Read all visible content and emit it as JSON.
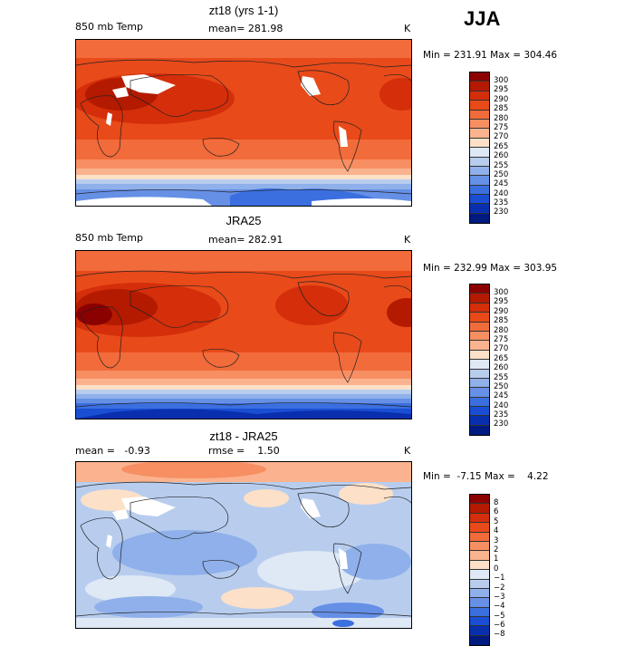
{
  "season": "JJA",
  "units": "K",
  "variable": "850 mb Temp",
  "panels": [
    {
      "title": "zt18 (yrs 1-1)",
      "left_label": "850 mb Temp",
      "mid_label": "mean= 281.98",
      "min_max": "Min = 231.91 Max = 304.46"
    },
    {
      "title": "JRA25",
      "left_label": "850 mb Temp",
      "mid_label": "mean= 282.91",
      "min_max": "Min = 232.99 Max = 303.95"
    },
    {
      "title": "zt18 - JRA25",
      "left_label": "mean =   -0.93",
      "mid_label": "rmse =    1.50",
      "min_max": "Min =  -7.15 Max =    4.22"
    }
  ],
  "temp_colorbar": {
    "labels": [
      "300",
      "295",
      "290",
      "285",
      "280",
      "275",
      "270",
      "265",
      "260",
      "255",
      "250",
      "245",
      "240",
      "235",
      "230"
    ],
    "colors": [
      "#8b0000",
      "#b31a00",
      "#d42e0a",
      "#e84a1a",
      "#f26b3a",
      "#f78f63",
      "#fab38e",
      "#fde0c8",
      "#dfe8f5",
      "#b8cdee",
      "#8fb0ea",
      "#6690e6",
      "#3b6fe0",
      "#1a4fd4",
      "#0a2fae",
      "#001a80"
    ]
  },
  "diff_colorbar": {
    "labels": [
      "8",
      "6",
      "5",
      "4",
      "3",
      "2",
      "1",
      "0",
      "−1",
      "−2",
      "−3",
      "−4",
      "−5",
      "−6",
      "−8"
    ],
    "colors": [
      "#8b0000",
      "#b31a00",
      "#d42e0a",
      "#e84a1a",
      "#f26b3a",
      "#f78f63",
      "#fab38e",
      "#fde0c8",
      "#dfe8f5",
      "#b8cdee",
      "#8fb0ea",
      "#6690e6",
      "#3b6fe0",
      "#1a4fd4",
      "#0a2fae",
      "#001a80"
    ]
  }
}
